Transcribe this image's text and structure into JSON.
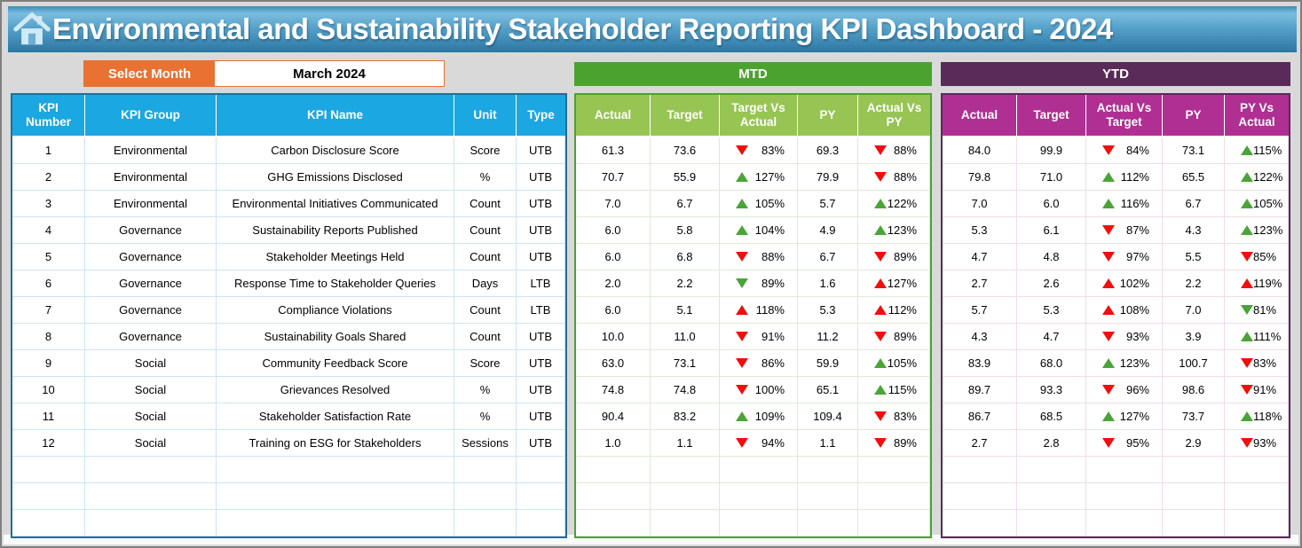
{
  "title": {
    "text": "Environmental and Sustainability Stakeholder Reporting KPI Dashboard - 2024"
  },
  "month_selector": {
    "label": "Select Month",
    "value": "March 2024"
  },
  "sections": {
    "mtd_label": "MTD",
    "ytd_label": "YTD"
  },
  "colors": {
    "title_bar_blue": "#4d9ac6",
    "left_header_blue": "#1BA7E1",
    "left_border_teal": "#1E7096",
    "mtd_banner_green": "#4CA22F",
    "mtd_header_green": "#97C553",
    "ytd_banner_plum": "#5A2A58",
    "ytd_header_magenta": "#B02F92",
    "select_month_orange": "#E97132",
    "arrow_red": "#F00E0E",
    "arrow_green": "#4AA437",
    "page_background": "#D9D9D9"
  },
  "left_table": {
    "headers": [
      "KPI Number",
      "KPI Group",
      "KPI Name",
      "Unit",
      "Type"
    ],
    "empty_rows": 3,
    "rows": [
      [
        "1",
        "Environmental",
        "Carbon Disclosure Score",
        "Score",
        "UTB"
      ],
      [
        "2",
        "Environmental",
        "GHG Emissions Disclosed",
        "%",
        "UTB"
      ],
      [
        "3",
        "Environmental",
        "Environmental Initiatives Communicated",
        "Count",
        "UTB"
      ],
      [
        "4",
        "Governance",
        "Sustainability Reports Published",
        "Count",
        "UTB"
      ],
      [
        "5",
        "Governance",
        "Stakeholder Meetings Held",
        "Count",
        "UTB"
      ],
      [
        "6",
        "Governance",
        "Response Time to Stakeholder Queries",
        "Days",
        "LTB"
      ],
      [
        "7",
        "Governance",
        "Compliance Violations",
        "Count",
        "LTB"
      ],
      [
        "8",
        "Governance",
        "Sustainability Goals Shared",
        "Count",
        "UTB"
      ],
      [
        "9",
        "Social",
        "Community Feedback Score",
        "Score",
        "UTB"
      ],
      [
        "10",
        "Social",
        "Grievances Resolved",
        "%",
        "UTB"
      ],
      [
        "11",
        "Social",
        "Stakeholder Satisfaction Rate",
        "%",
        "UTB"
      ],
      [
        "12",
        "Social",
        "Training on ESG for Stakeholders",
        "Sessions",
        "UTB"
      ]
    ]
  },
  "mtd_table": {
    "headers": [
      "Actual",
      "Target",
      "Target Vs Actual",
      "PY",
      "Actual Vs PY"
    ],
    "empty_rows": 3,
    "rows": [
      [
        "61.3",
        "73.6",
        {
          "arrow": "down",
          "color": "red",
          "value": "83%"
        },
        "69.3",
        {
          "arrow": "down",
          "color": "red",
          "value": "88%"
        }
      ],
      [
        "70.7",
        "55.9",
        {
          "arrow": "up",
          "color": "green",
          "value": "127%"
        },
        "79.9",
        {
          "arrow": "down",
          "color": "red",
          "value": "88%"
        }
      ],
      [
        "7.0",
        "6.7",
        {
          "arrow": "up",
          "color": "green",
          "value": "105%"
        },
        "5.7",
        {
          "arrow": "up",
          "color": "green",
          "value": "122%"
        }
      ],
      [
        "6.0",
        "5.8",
        {
          "arrow": "up",
          "color": "green",
          "value": "104%"
        },
        "4.9",
        {
          "arrow": "up",
          "color": "green",
          "value": "123%"
        }
      ],
      [
        "6.0",
        "6.8",
        {
          "arrow": "down",
          "color": "red",
          "value": "88%"
        },
        "6.7",
        {
          "arrow": "down",
          "color": "red",
          "value": "89%"
        }
      ],
      [
        "2.0",
        "2.2",
        {
          "arrow": "down",
          "color": "green",
          "value": "89%"
        },
        "1.6",
        {
          "arrow": "up",
          "color": "red",
          "value": "127%"
        }
      ],
      [
        "6.0",
        "5.1",
        {
          "arrow": "up",
          "color": "red",
          "value": "118%"
        },
        "5.3",
        {
          "arrow": "up",
          "color": "red",
          "value": "112%"
        }
      ],
      [
        "10.0",
        "11.0",
        {
          "arrow": "down",
          "color": "red",
          "value": "91%"
        },
        "11.2",
        {
          "arrow": "down",
          "color": "red",
          "value": "89%"
        }
      ],
      [
        "63.0",
        "73.1",
        {
          "arrow": "down",
          "color": "red",
          "value": "86%"
        },
        "59.9",
        {
          "arrow": "up",
          "color": "green",
          "value": "105%"
        }
      ],
      [
        "74.8",
        "74.8",
        {
          "arrow": "down",
          "color": "red",
          "value": "100%"
        },
        "65.1",
        {
          "arrow": "up",
          "color": "green",
          "value": "115%"
        }
      ],
      [
        "90.4",
        "83.2",
        {
          "arrow": "up",
          "color": "green",
          "value": "109%"
        },
        "109.4",
        {
          "arrow": "down",
          "color": "red",
          "value": "83%"
        }
      ],
      [
        "1.0",
        "1.1",
        {
          "arrow": "down",
          "color": "red",
          "value": "94%"
        },
        "1.1",
        {
          "arrow": "down",
          "color": "red",
          "value": "89%"
        }
      ]
    ]
  },
  "ytd_table": {
    "headers": [
      "Actual",
      "Target",
      "Actual Vs Target",
      "PY",
      "PY Vs Actual"
    ],
    "empty_rows": 3,
    "rows": [
      [
        "84.0",
        "99.9",
        {
          "arrow": "down",
          "color": "red",
          "value": "84%"
        },
        "73.1",
        {
          "arrow": "up",
          "color": "green",
          "value": "115%"
        }
      ],
      [
        "79.8",
        "71.0",
        {
          "arrow": "up",
          "color": "green",
          "value": "112%"
        },
        "65.5",
        {
          "arrow": "up",
          "color": "green",
          "value": "122%"
        }
      ],
      [
        "7.0",
        "6.0",
        {
          "arrow": "up",
          "color": "green",
          "value": "116%"
        },
        "6.7",
        {
          "arrow": "up",
          "color": "green",
          "value": "105%"
        }
      ],
      [
        "5.3",
        "6.1",
        {
          "arrow": "down",
          "color": "red",
          "value": "87%"
        },
        "4.3",
        {
          "arrow": "up",
          "color": "green",
          "value": "123%"
        }
      ],
      [
        "4.7",
        "4.8",
        {
          "arrow": "down",
          "color": "red",
          "value": "97%"
        },
        "5.5",
        {
          "arrow": "down",
          "color": "red",
          "value": "85%"
        }
      ],
      [
        "2.7",
        "2.6",
        {
          "arrow": "up",
          "color": "red",
          "value": "102%"
        },
        "2.2",
        {
          "arrow": "up",
          "color": "red",
          "value": "119%"
        }
      ],
      [
        "5.7",
        "5.3",
        {
          "arrow": "up",
          "color": "red",
          "value": "108%"
        },
        "7.0",
        {
          "arrow": "down",
          "color": "green",
          "value": "81%"
        }
      ],
      [
        "4.3",
        "4.7",
        {
          "arrow": "down",
          "color": "red",
          "value": "93%"
        },
        "3.9",
        {
          "arrow": "up",
          "color": "green",
          "value": "111%"
        }
      ],
      [
        "83.9",
        "68.0",
        {
          "arrow": "up",
          "color": "green",
          "value": "123%"
        },
        "100.7",
        {
          "arrow": "down",
          "color": "red",
          "value": "83%"
        }
      ],
      [
        "89.7",
        "93.3",
        {
          "arrow": "down",
          "color": "red",
          "value": "96%"
        },
        "98.6",
        {
          "arrow": "down",
          "color": "red",
          "value": "91%"
        }
      ],
      [
        "86.7",
        "68.5",
        {
          "arrow": "up",
          "color": "green",
          "value": "127%"
        },
        "73.7",
        {
          "arrow": "up",
          "color": "green",
          "value": "118%"
        }
      ],
      [
        "2.7",
        "2.8",
        {
          "arrow": "down",
          "color": "red",
          "value": "95%"
        },
        "2.9",
        {
          "arrow": "down",
          "color": "red",
          "value": "93%"
        }
      ]
    ]
  }
}
